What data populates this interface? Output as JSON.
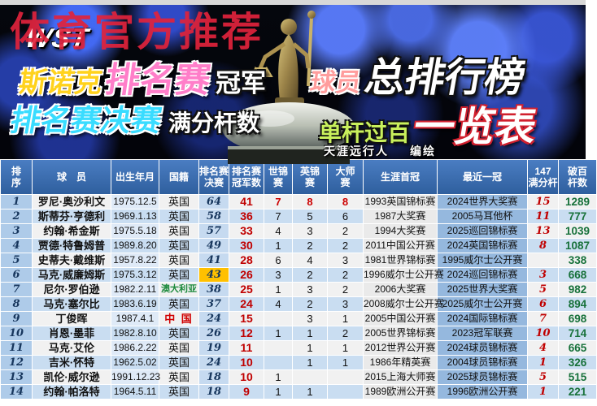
{
  "watermark": "体育官方推荐",
  "logo": "WST",
  "hero": {
    "line1_left": {
      "a": "斯诺克",
      "b": "排名赛",
      "c": "冠军"
    },
    "line1_right": {
      "a": "球员",
      "b": "总排行榜"
    },
    "line2_left": {
      "a": "排名赛决赛",
      "b": "满分杆数"
    },
    "line2_right": {
      "a": "单杆过百",
      "b": "一览表"
    },
    "credit_name": "天涯远行人",
    "credit_role": "编绘"
  },
  "colors": {
    "watermark_red": "#e1233c",
    "champion_red": "#c00000",
    "century_green": "#17713a",
    "highlight_yellow": "#ffc000",
    "latest_col_blue": "#95b8de",
    "header_blue": "#3a70b7"
  },
  "table": {
    "headers": [
      "排\n序",
      "球　员",
      "出生年月",
      "国籍",
      "排名赛\n决赛",
      "排名赛\n冠军数",
      "世锦\n赛",
      "英锦\n赛",
      "大师\n赛",
      "生涯首冠",
      "最近一冠",
      "147\n满分杆",
      "破百\n杆数"
    ],
    "rows": [
      {
        "rank": "1",
        "name": "罗尼·奥沙利文",
        "born": "1975.12.5",
        "nat": "英国",
        "finals": "64",
        "titles": "41",
        "wc": "7",
        "uk": "8",
        "ms": "8",
        "first": "1993英国锦标赛",
        "latest": "2024世界大奖赛",
        "maxes": "15",
        "cent": "1289",
        "tri_red": true
      },
      {
        "rank": "2",
        "name": "斯蒂芬·亨德利",
        "born": "1969.1.13",
        "nat": "英国",
        "finals": "58",
        "titles": "36",
        "wc": "7",
        "uk": "5",
        "ms": "6",
        "first": "1987大奖赛",
        "latest": "2005马耳他杯",
        "maxes": "11",
        "cent": "777"
      },
      {
        "rank": "3",
        "name": "约翰·希金斯",
        "born": "1975.5.18",
        "nat": "英国",
        "finals": "57",
        "titles": "33",
        "wc": "4",
        "uk": "3",
        "ms": "2",
        "first": "1994大奖赛",
        "latest": "2025巡回锦标赛",
        "maxes": "13",
        "cent": "1039"
      },
      {
        "rank": "4",
        "name": "贾德·特鲁姆普",
        "born": "1989.8.20",
        "nat": "英国",
        "finals": "49",
        "titles": "30",
        "wc": "1",
        "uk": "2",
        "ms": "2",
        "first": "2011中国公开赛",
        "latest": "2024英国锦标赛",
        "maxes": "8",
        "cent": "1087"
      },
      {
        "rank": "5",
        "name": "史蒂夫·戴维斯",
        "born": "1957.8.22",
        "nat": "英国",
        "finals": "41",
        "titles": "28",
        "wc": "6",
        "uk": "4",
        "ms": "3",
        "first": "1981世界锦标赛",
        "latest": "1995威尔士公开赛",
        "maxes": "",
        "cent": "338"
      },
      {
        "rank": "6",
        "name": "马克·威廉姆斯",
        "born": "1975.3.12",
        "nat": "英国",
        "finals": "43",
        "titles": "26",
        "wc": "3",
        "uk": "2",
        "ms": "2",
        "first": "1996威尔士公开赛",
        "latest": "2024巡回锦标赛",
        "maxes": "3",
        "cent": "668",
        "hot": true
      },
      {
        "rank": "7",
        "name": "尼尔·罗伯逊",
        "born": "1982.2.11",
        "nat": "澳大利亚",
        "finals": "38",
        "titles": "25",
        "wc": "1",
        "uk": "3",
        "ms": "2",
        "first": "2006大奖赛",
        "latest": "2025世界大奖赛",
        "maxes": "5",
        "cent": "982",
        "nat_class": "nat-au"
      },
      {
        "rank": "8",
        "name": "马克·塞尔比",
        "born": "1983.6.19",
        "nat": "英国",
        "finals": "37",
        "titles": "24",
        "wc": "4",
        "uk": "2",
        "ms": "3",
        "first": "2008威尔士公开赛",
        "latest": "2025威尔士公开赛",
        "maxes": "6",
        "cent": "894"
      },
      {
        "rank": "9",
        "name": "丁俊晖",
        "born": "1987.4.1",
        "nat": "中 国",
        "finals": "24",
        "titles": "15",
        "wc": "",
        "uk": "3",
        "ms": "1",
        "first": "2005中国公开赛",
        "latest": "2024国际锦标赛",
        "maxes": "7",
        "cent": "698",
        "nat_class": "nat-cn"
      },
      {
        "rank": "10",
        "name": "肖恩·墨菲",
        "born": "1982.8.10",
        "nat": "英国",
        "finals": "26",
        "titles": "12",
        "wc": "1",
        "uk": "1",
        "ms": "2",
        "first": "2005世界锦标赛",
        "latest": "2023冠军联赛",
        "maxes": "10",
        "cent": "714"
      },
      {
        "rank": "11",
        "name": "马克·艾伦",
        "born": "1986.2.22",
        "nat": "英国",
        "finals": "19",
        "titles": "11",
        "wc": "",
        "uk": "1",
        "ms": "1",
        "first": "2012世界公开赛",
        "latest": "2024球员锦标赛",
        "maxes": "4",
        "cent": "665"
      },
      {
        "rank": "12",
        "name": "吉米·怀特",
        "born": "1962.5.02",
        "nat": "英国",
        "finals": "24",
        "titles": "10",
        "wc": "",
        "uk": "1",
        "ms": "1",
        "first": "1986年精英赛",
        "latest": "2004球员锦标赛",
        "maxes": "1",
        "cent": "326"
      },
      {
        "rank": "13",
        "name": "凯伦·威尔逊",
        "born": "1991.12.23",
        "nat": "英国",
        "finals": "18",
        "titles": "10",
        "wc": "1",
        "uk": "",
        "ms": "",
        "first": "2015上海大师赛",
        "latest": "2025球员锦标赛",
        "maxes": "5",
        "cent": "515"
      },
      {
        "rank": "14",
        "name": "约翰·帕洛特",
        "born": "1964.5.11",
        "nat": "英国",
        "finals": "18",
        "titles": "9",
        "wc": "1",
        "uk": "1",
        "ms": "",
        "first": "1989欧洲公开赛",
        "latest": "1996欧洲公开赛",
        "maxes": "1",
        "cent": "221"
      }
    ]
  }
}
